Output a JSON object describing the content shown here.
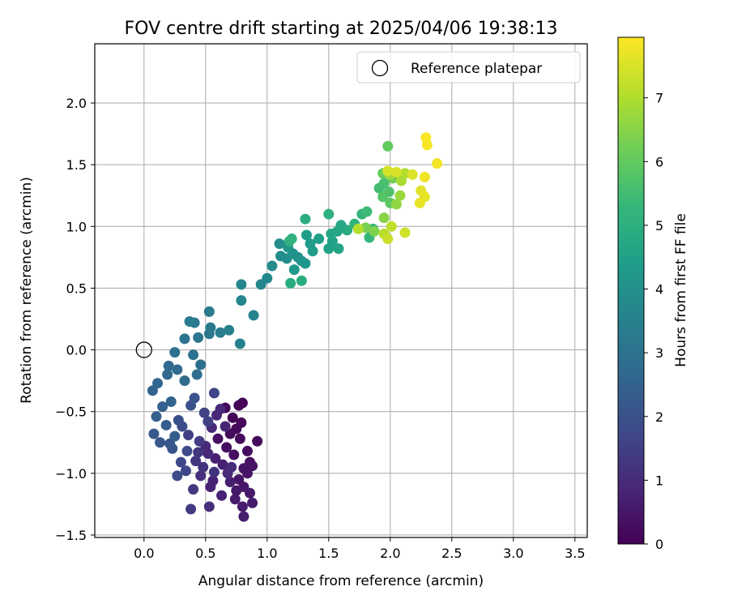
{
  "chart_data": {
    "type": "scatter",
    "title": "FOV centre drift starting at 2025/04/06 19:38:13",
    "xlabel": "Angular distance from reference (arcmin)",
    "ylabel": "Rotation from reference (arcmin)",
    "xlim": [
      -0.4,
      3.6
    ],
    "ylim": [
      -1.52,
      2.48
    ],
    "xticks": [
      "0.0",
      "0.5",
      "1.0",
      "1.5",
      "2.0",
      "2.5",
      "3.0",
      "3.5"
    ],
    "xtick_values": [
      0,
      0.5,
      1,
      1.5,
      2,
      2.5,
      3,
      3.5
    ],
    "yticks": [
      "−1.5",
      "−1.0",
      "−0.5",
      "0.0",
      "0.5",
      "1.0",
      "1.5",
      "2.0"
    ],
    "ytick_values": [
      -1.5,
      -1,
      -0.5,
      0,
      0.5,
      1,
      1.5,
      2
    ],
    "grid": true,
    "legend": {
      "placement": "top-right",
      "entries": [
        "Reference platepar"
      ]
    },
    "reference_marker": {
      "label": "Reference platepar",
      "x": 0,
      "y": 0
    },
    "colorbar": {
      "label": "Hours from first FF file",
      "range": [
        0,
        7.95
      ],
      "ticks": [
        "0",
        "1",
        "2",
        "3",
        "4",
        "5",
        "6",
        "7"
      ],
      "tick_values": [
        0,
        1,
        2,
        3,
        4,
        5,
        6,
        7
      ],
      "colormap": "viridis"
    },
    "colors": {
      "viridis": [
        "#440154",
        "#482878",
        "#3e4989",
        "#31688e",
        "#26828e",
        "#1f9e89",
        "#35b779",
        "#6ece58",
        "#b5de2b",
        "#fde725"
      ],
      "grid": "#b0b0b0",
      "reference_marker": "#000000"
    },
    "points": [
      {
        "x": 0.8,
        "y": -0.43,
        "c": 0.05
      },
      {
        "x": 0.77,
        "y": -0.45,
        "c": 0.08
      },
      {
        "x": 0.66,
        "y": -0.47,
        "c": 0.1
      },
      {
        "x": 0.72,
        "y": -0.55,
        "c": 0.12
      },
      {
        "x": 0.79,
        "y": -0.59,
        "c": 0.15
      },
      {
        "x": 0.75,
        "y": -0.64,
        "c": 0.18
      },
      {
        "x": 0.7,
        "y": -0.68,
        "c": 0.2
      },
      {
        "x": 0.78,
        "y": -0.72,
        "c": 0.22
      },
      {
        "x": 0.92,
        "y": -0.74,
        "c": 0.25
      },
      {
        "x": 0.84,
        "y": -0.82,
        "c": 0.28
      },
      {
        "x": 0.73,
        "y": -0.85,
        "c": 0.3
      },
      {
        "x": 0.67,
        "y": -0.79,
        "c": 0.32
      },
      {
        "x": 0.6,
        "y": -0.72,
        "c": 0.35
      },
      {
        "x": 0.86,
        "y": -0.91,
        "c": 0.38
      },
      {
        "x": 0.88,
        "y": -0.94,
        "c": 0.4
      },
      {
        "x": 0.81,
        "y": -0.96,
        "c": 0.42
      },
      {
        "x": 0.84,
        "y": -1.0,
        "c": 0.45
      },
      {
        "x": 0.77,
        "y": -1.05,
        "c": 0.48
      },
      {
        "x": 0.81,
        "y": -1.11,
        "c": 0.5
      },
      {
        "x": 0.75,
        "y": -1.14,
        "c": 0.52
      },
      {
        "x": 0.86,
        "y": -1.16,
        "c": 0.55
      },
      {
        "x": 0.74,
        "y": -1.21,
        "c": 0.58
      },
      {
        "x": 0.88,
        "y": -1.24,
        "c": 0.6
      },
      {
        "x": 0.8,
        "y": -1.27,
        "c": 0.62
      },
      {
        "x": 0.81,
        "y": -1.35,
        "c": 0.65
      },
      {
        "x": 0.7,
        "y": -1.07,
        "c": 0.68
      },
      {
        "x": 0.64,
        "y": -0.93,
        "c": 0.7
      },
      {
        "x": 0.58,
        "y": -0.88,
        "c": 0.72
      },
      {
        "x": 0.63,
        "y": -1.18,
        "c": 0.75
      },
      {
        "x": 0.54,
        "y": -1.11,
        "c": 0.78
      },
      {
        "x": 0.56,
        "y": -1.06,
        "c": 0.8
      },
      {
        "x": 0.66,
        "y": -0.62,
        "c": 0.82
      },
      {
        "x": 0.59,
        "y": -0.53,
        "c": 0.85
      },
      {
        "x": 0.62,
        "y": -0.48,
        "c": 0.88
      },
      {
        "x": 0.55,
        "y": -0.63,
        "c": 0.9
      },
      {
        "x": 0.52,
        "y": -0.84,
        "c": 0.92
      },
      {
        "x": 0.5,
        "y": -0.78,
        "c": 0.95
      },
      {
        "x": 0.68,
        "y": -1.0,
        "c": 0.98
      },
      {
        "x": 0.71,
        "y": -0.95,
        "c": 1.0
      },
      {
        "x": 0.53,
        "y": -1.27,
        "c": 1.05
      },
      {
        "x": 0.46,
        "y": -1.02,
        "c": 1.1
      },
      {
        "x": 0.48,
        "y": -0.95,
        "c": 1.15
      },
      {
        "x": 0.57,
        "y": -0.99,
        "c": 1.2
      },
      {
        "x": 0.42,
        "y": -0.9,
        "c": 1.25
      },
      {
        "x": 0.44,
        "y": -0.83,
        "c": 1.3
      },
      {
        "x": 0.4,
        "y": -1.13,
        "c": 1.35
      },
      {
        "x": 0.38,
        "y": -1.29,
        "c": 1.4
      },
      {
        "x": 0.45,
        "y": -0.74,
        "c": 1.45
      },
      {
        "x": 0.36,
        "y": -0.69,
        "c": 1.5
      },
      {
        "x": 0.52,
        "y": -0.58,
        "c": 1.55
      },
      {
        "x": 0.49,
        "y": -0.51,
        "c": 1.6
      },
      {
        "x": 0.57,
        "y": -0.35,
        "c": 1.65
      },
      {
        "x": 0.34,
        "y": -0.98,
        "c": 1.7
      },
      {
        "x": 0.3,
        "y": -0.91,
        "c": 1.75
      },
      {
        "x": 0.35,
        "y": -0.82,
        "c": 1.8
      },
      {
        "x": 0.27,
        "y": -1.02,
        "c": 1.85
      },
      {
        "x": 0.31,
        "y": -0.62,
        "c": 1.9
      },
      {
        "x": 0.28,
        "y": -0.57,
        "c": 1.95
      },
      {
        "x": 0.38,
        "y": -0.45,
        "c": 2.0
      },
      {
        "x": 0.41,
        "y": -0.39,
        "c": 2.05
      },
      {
        "x": 0.23,
        "y": -0.8,
        "c": 2.1
      },
      {
        "x": 0.21,
        "y": -0.76,
        "c": 2.15
      },
      {
        "x": 0.13,
        "y": -0.75,
        "c": 2.2
      },
      {
        "x": 0.08,
        "y": -0.68,
        "c": 2.25
      },
      {
        "x": 0.25,
        "y": -0.7,
        "c": 2.3
      },
      {
        "x": 0.18,
        "y": -0.61,
        "c": 2.35
      },
      {
        "x": 0.1,
        "y": -0.54,
        "c": 2.4
      },
      {
        "x": 0.15,
        "y": -0.46,
        "c": 2.45
      },
      {
        "x": 0.22,
        "y": -0.42,
        "c": 2.5
      },
      {
        "x": 0.07,
        "y": -0.33,
        "c": 2.55
      },
      {
        "x": 0.11,
        "y": -0.27,
        "c": 2.6
      },
      {
        "x": 0.19,
        "y": -0.2,
        "c": 2.65
      },
      {
        "x": 0.2,
        "y": -0.13,
        "c": 2.7
      },
      {
        "x": 0.27,
        "y": -0.16,
        "c": 2.75
      },
      {
        "x": 0.33,
        "y": -0.25,
        "c": 2.8
      },
      {
        "x": 0.43,
        "y": -0.2,
        "c": 2.85
      },
      {
        "x": 0.46,
        "y": -0.12,
        "c": 2.9
      },
      {
        "x": 0.25,
        "y": -0.02,
        "c": 2.95
      },
      {
        "x": 0.4,
        "y": -0.04,
        "c": 3.0
      },
      {
        "x": 0.33,
        "y": 0.09,
        "c": 3.05
      },
      {
        "x": 0.44,
        "y": 0.1,
        "c": 3.1
      },
      {
        "x": 0.53,
        "y": 0.13,
        "c": 3.15
      },
      {
        "x": 0.41,
        "y": 0.22,
        "c": 3.2
      },
      {
        "x": 0.54,
        "y": 0.18,
        "c": 3.25
      },
      {
        "x": 0.53,
        "y": 0.31,
        "c": 3.3
      },
      {
        "x": 0.37,
        "y": 0.23,
        "c": 3.35
      },
      {
        "x": 0.62,
        "y": 0.14,
        "c": 3.4
      },
      {
        "x": 0.69,
        "y": 0.16,
        "c": 3.45
      },
      {
        "x": 0.78,
        "y": 0.05,
        "c": 3.5
      },
      {
        "x": 0.89,
        "y": 0.28,
        "c": 3.55
      },
      {
        "x": 0.79,
        "y": 0.4,
        "c": 3.6
      },
      {
        "x": 0.79,
        "y": 0.53,
        "c": 3.65
      },
      {
        "x": 0.95,
        "y": 0.53,
        "c": 3.7
      },
      {
        "x": 1.0,
        "y": 0.58,
        "c": 3.75
      },
      {
        "x": 1.04,
        "y": 0.68,
        "c": 3.8
      },
      {
        "x": 1.11,
        "y": 0.76,
        "c": 3.85
      },
      {
        "x": 1.1,
        "y": 0.86,
        "c": 3.9
      },
      {
        "x": 1.16,
        "y": 0.74,
        "c": 3.95
      },
      {
        "x": 1.21,
        "y": 0.78,
        "c": 4.0
      },
      {
        "x": 1.25,
        "y": 0.75,
        "c": 4.05
      },
      {
        "x": 1.28,
        "y": 0.72,
        "c": 4.1
      },
      {
        "x": 1.31,
        "y": 0.7,
        "c": 4.15
      },
      {
        "x": 1.17,
        "y": 0.83,
        "c": 4.2
      },
      {
        "x": 1.22,
        "y": 0.65,
        "c": 4.25
      },
      {
        "x": 1.35,
        "y": 0.86,
        "c": 4.3
      },
      {
        "x": 1.37,
        "y": 0.8,
        "c": 4.35
      },
      {
        "x": 1.32,
        "y": 0.93,
        "c": 4.4
      },
      {
        "x": 1.42,
        "y": 0.9,
        "c": 4.45
      },
      {
        "x": 1.5,
        "y": 0.82,
        "c": 4.5
      },
      {
        "x": 1.53,
        "y": 0.88,
        "c": 4.55
      },
      {
        "x": 1.58,
        "y": 0.82,
        "c": 4.6
      },
      {
        "x": 1.57,
        "y": 0.96,
        "c": 4.65
      },
      {
        "x": 1.52,
        "y": 0.94,
        "c": 4.7
      },
      {
        "x": 1.6,
        "y": 1.01,
        "c": 4.75
      },
      {
        "x": 1.65,
        "y": 0.97,
        "c": 4.8
      },
      {
        "x": 1.19,
        "y": 0.54,
        "c": 4.85
      },
      {
        "x": 1.28,
        "y": 0.56,
        "c": 4.9
      },
      {
        "x": 1.31,
        "y": 1.06,
        "c": 4.95
      },
      {
        "x": 1.5,
        "y": 1.1,
        "c": 5.0
      },
      {
        "x": 1.18,
        "y": 0.88,
        "c": 5.05
      },
      {
        "x": 1.2,
        "y": 0.9,
        "c": 5.1
      },
      {
        "x": 1.71,
        "y": 1.02,
        "c": 5.15
      },
      {
        "x": 1.77,
        "y": 1.1,
        "c": 5.2
      },
      {
        "x": 1.83,
        "y": 0.91,
        "c": 5.25
      },
      {
        "x": 1.86,
        "y": 0.98,
        "c": 5.3
      },
      {
        "x": 1.81,
        "y": 1.12,
        "c": 5.4
      },
      {
        "x": 1.91,
        "y": 1.31,
        "c": 5.5
      },
      {
        "x": 1.95,
        "y": 1.35,
        "c": 5.6
      },
      {
        "x": 1.99,
        "y": 1.28,
        "c": 5.7
      },
      {
        "x": 1.94,
        "y": 1.24,
        "c": 5.8
      },
      {
        "x": 2.0,
        "y": 1.19,
        "c": 5.9
      },
      {
        "x": 1.98,
        "y": 1.65,
        "c": 6.0
      },
      {
        "x": 1.94,
        "y": 1.43,
        "c": 6.1
      },
      {
        "x": 2.02,
        "y": 1.39,
        "c": 6.2
      },
      {
        "x": 1.8,
        "y": 0.99,
        "c": 6.3
      },
      {
        "x": 1.87,
        "y": 0.96,
        "c": 6.4
      },
      {
        "x": 1.95,
        "y": 1.07,
        "c": 6.5
      },
      {
        "x": 2.05,
        "y": 1.18,
        "c": 6.6
      },
      {
        "x": 2.08,
        "y": 1.25,
        "c": 6.7
      },
      {
        "x": 2.0,
        "y": 1.42,
        "c": 6.8
      },
      {
        "x": 2.09,
        "y": 1.37,
        "c": 6.9
      },
      {
        "x": 2.12,
        "y": 1.43,
        "c": 7.0
      },
      {
        "x": 1.74,
        "y": 0.98,
        "c": 7.05
      },
      {
        "x": 1.95,
        "y": 0.94,
        "c": 7.1
      },
      {
        "x": 2.01,
        "y": 1.0,
        "c": 7.2
      },
      {
        "x": 1.98,
        "y": 0.9,
        "c": 7.3
      },
      {
        "x": 2.12,
        "y": 0.95,
        "c": 7.4
      },
      {
        "x": 1.98,
        "y": 1.45,
        "c": 7.45
      },
      {
        "x": 2.05,
        "y": 1.44,
        "c": 7.5
      },
      {
        "x": 2.18,
        "y": 1.42,
        "c": 7.55
      },
      {
        "x": 2.25,
        "y": 1.29,
        "c": 7.6
      },
      {
        "x": 2.28,
        "y": 1.24,
        "c": 7.65
      },
      {
        "x": 2.24,
        "y": 1.19,
        "c": 7.7
      },
      {
        "x": 2.28,
        "y": 1.4,
        "c": 7.75
      },
      {
        "x": 2.38,
        "y": 1.51,
        "c": 7.8
      },
      {
        "x": 2.3,
        "y": 1.66,
        "c": 7.85
      },
      {
        "x": 2.29,
        "y": 1.72,
        "c": 7.9
      }
    ]
  }
}
